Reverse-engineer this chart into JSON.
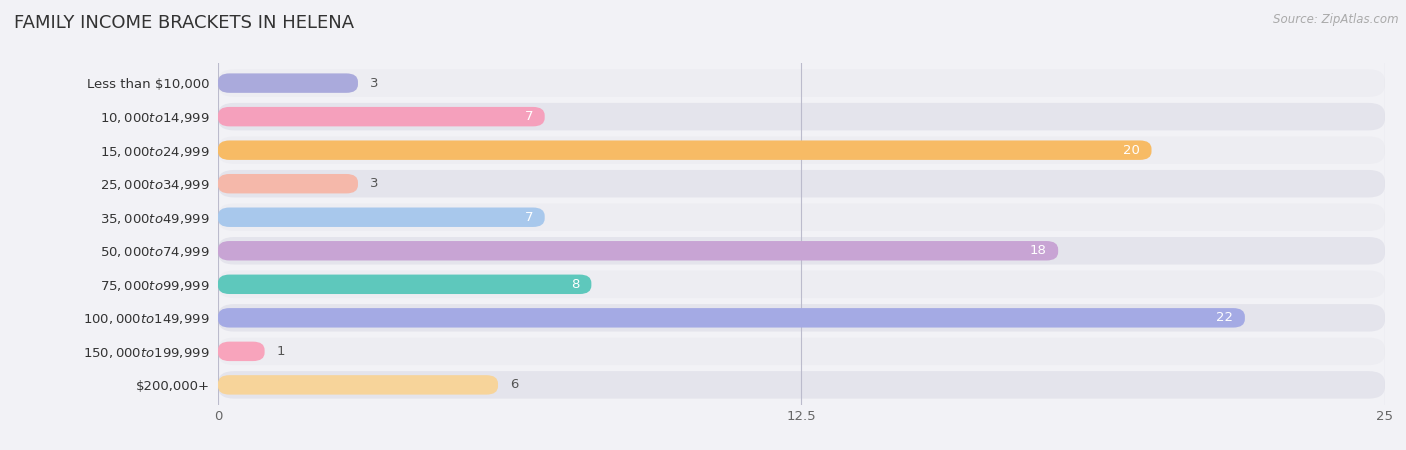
{
  "title": "FAMILY INCOME BRACKETS IN HELENA",
  "source": "Source: ZipAtlas.com",
  "categories": [
    "Less than $10,000",
    "$10,000 to $14,999",
    "$15,000 to $24,999",
    "$25,000 to $34,999",
    "$35,000 to $49,999",
    "$50,000 to $74,999",
    "$75,000 to $99,999",
    "$100,000 to $149,999",
    "$150,000 to $199,999",
    "$200,000+"
  ],
  "values": [
    3,
    7,
    20,
    3,
    7,
    18,
    8,
    22,
    1,
    6
  ],
  "bar_colors": [
    "#aaaadc",
    "#f5a0bc",
    "#f7bb65",
    "#f5b8aa",
    "#a8c8ec",
    "#c8a4d4",
    "#5ec8bc",
    "#a4aaE4",
    "#f8a4bc",
    "#f7d49a"
  ],
  "bg_row_colors_odd": "#ededf2",
  "bg_row_colors_even": "#e4e4ec",
  "xlim": [
    0,
    25
  ],
  "xticks": [
    0,
    12.5,
    25
  ],
  "title_fontsize": 13,
  "label_fontsize": 9.5,
  "value_fontsize": 9.5,
  "background_color": "#f2f2f6"
}
